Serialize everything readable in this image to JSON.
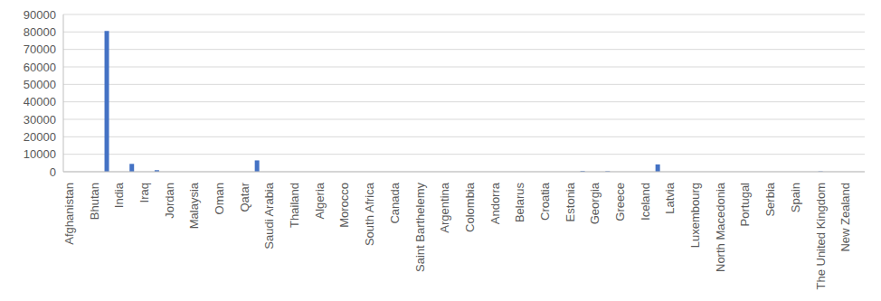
{
  "chart_data": {
    "type": "bar",
    "categories": [
      "Afghanistan",
      null,
      "Bhutan",
      null,
      "India",
      null,
      "Iraq",
      null,
      "Jordan",
      null,
      "Malaysia",
      null,
      "Oman",
      null,
      "Qatar",
      null,
      "Saudi Arabia",
      null,
      "Thailand",
      null,
      "Algeria",
      null,
      "Morocco",
      null,
      "South Africa",
      null,
      "Canada",
      null,
      "Saint Barthelemy",
      null,
      "Argentina",
      null,
      "Colombia",
      null,
      "Andorra",
      null,
      "Belarus",
      null,
      "Croatia",
      null,
      "Estonia",
      null,
      "Georgia",
      null,
      "Greece",
      null,
      "Iceland",
      null,
      "Latvia",
      null,
      "Luxembourg",
      null,
      "North Macedonia",
      null,
      "Portugal",
      null,
      "Serbia",
      null,
      "Spain",
      null,
      "The United Kingdom",
      null,
      "New Zealand",
      null
    ],
    "values": [
      0,
      0,
      0,
      80500,
      0,
      4500,
      0,
      900,
      0,
      0,
      0,
      0,
      0,
      0,
      0,
      6500,
      0,
      0,
      0,
      0,
      0,
      0,
      0,
      0,
      0,
      0,
      0,
      0,
      0,
      0,
      0,
      0,
      0,
      0,
      0,
      0,
      0,
      0,
      0,
      0,
      0,
      400,
      0,
      300,
      0,
      0,
      0,
      4200,
      0,
      0,
      0,
      0,
      0,
      0,
      0,
      0,
      0,
      0,
      0,
      0,
      200,
      0,
      0,
      0
    ],
    "color": "#4472c4",
    "ylim": [
      0,
      90000
    ],
    "yticks": [
      0,
      10000,
      20000,
      30000,
      40000,
      50000,
      60000,
      70000,
      80000,
      90000
    ],
    "grid": true
  }
}
